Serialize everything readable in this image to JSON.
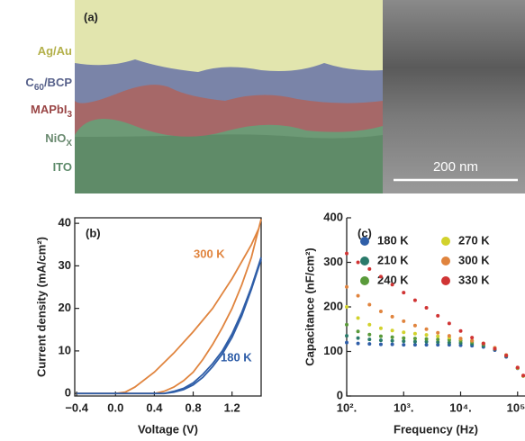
{
  "image_panel": {
    "title": "(a)",
    "layers": [
      {
        "main": "Ag/Au",
        "color": "#b3b04a"
      },
      {
        "main": "C",
        "sub": "60",
        "rest": "/BCP",
        "color": "#56608a"
      },
      {
        "main": "MAPbI",
        "sub": "3",
        "color": "#9a4646"
      },
      {
        "main": "NiO",
        "sub": "X",
        "color": "#6a8a70"
      },
      {
        "main": "ITO",
        "color": "#5d8a6a"
      }
    ],
    "scale_bar": "200 nm"
  },
  "chart_data": [
    {
      "type": "line",
      "title": "(b)",
      "x_label": "Voltage (V)",
      "y_label": "Current density (mA/cm²)",
      "xlim": [
        -0.42,
        1.5
      ],
      "ylim": [
        -0.6,
        41.3
      ],
      "xticks": [
        {
          "value": -0.4,
          "label": "−0.4"
        },
        {
          "value": 0,
          "label": "0.0"
        },
        0.4,
        0.8,
        1.2
      ],
      "yticks": [
        0,
        10,
        20,
        30,
        40
      ],
      "series": [
        {
          "name": "300 K",
          "color": "#e0843e",
          "x": [
            -0.4,
            0,
            0.1,
            0.2,
            0.4,
            0.6,
            0.8,
            1.0,
            1.2,
            1.4,
            1.48,
            null,
            -0.4,
            0.4,
            0.5,
            0.6,
            0.7,
            0.8,
            0.9,
            1.0,
            1.1,
            1.2,
            1.3,
            1.4,
            1.5
          ],
          "values": [
            0,
            0,
            0.3,
            1.5,
            5,
            9.5,
            14.5,
            20,
            27,
            35,
            39,
            null,
            0,
            0,
            0.5,
            1.5,
            3,
            5,
            8,
            11.5,
            15.5,
            20,
            25.5,
            32,
            41
          ]
        },
        {
          "name": "180 K",
          "color": "#2f5ea8",
          "x": [
            -0.4,
            0.5,
            0.6,
            0.7,
            0.8,
            0.9,
            1.0,
            1.1,
            1.2,
            1.3,
            1.4,
            1.5,
            null,
            -0.4,
            0.5,
            0.6,
            0.7,
            0.8,
            0.9,
            1.0,
            1.1,
            1.2,
            1.3,
            1.4,
            1.5
          ],
          "values": [
            0,
            0,
            0.5,
            1.2,
            2.5,
            4.5,
            7,
            10,
            14,
            19,
            25,
            32,
            null,
            0,
            0,
            0.3,
            0.9,
            2,
            3.8,
            6.3,
            9.3,
            13.2,
            18.2,
            24.5,
            31.5
          ]
        }
      ]
    },
    {
      "type": "scatter",
      "title": "(c)",
      "x_label": "Frequency (Hz)",
      "y_label": "Capacitance (nF/cm²)",
      "log_x": true,
      "xlim": [
        100,
        134896
      ],
      "ylim": [
        0,
        400
      ],
      "xticks": [
        {
          "value": 100,
          "label": "10²."
        },
        {
          "value": 1000,
          "label": "10³."
        },
        {
          "value": 10000,
          "label": "10⁴."
        },
        {
          "value": 100000,
          "label": "10⁵."
        }
      ],
      "yticks": [
        0,
        100,
        200,
        300,
        400
      ],
      "x": [
        100,
        158,
        251,
        398,
        631,
        1000,
        1585,
        2512,
        3981,
        6310,
        10000,
        15849,
        25119,
        39811,
        63096,
        100000,
        125893
      ],
      "series": [
        {
          "name": "180 K",
          "color": "#2f5ea8",
          "values": [
            120,
            118,
            117,
            116,
            116,
            115,
            115,
            115,
            115,
            115,
            114,
            113,
            110,
            103,
            88,
            62,
            45
          ]
        },
        {
          "name": "210 K",
          "color": "#2a7a6a",
          "values": [
            135,
            130,
            127,
            125,
            124,
            123,
            122,
            122,
            121,
            120,
            119,
            117,
            113,
            105,
            90,
            63,
            45
          ]
        },
        {
          "name": "240 K",
          "color": "#5a9a3a",
          "values": [
            160,
            145,
            138,
            134,
            132,
            130,
            129,
            128,
            127,
            126,
            124,
            121,
            116,
            107,
            91,
            63,
            45
          ]
        },
        {
          "name": "270 K",
          "color": "#d2d22c",
          "values": [
            200,
            175,
            160,
            152,
            147,
            143,
            140,
            137,
            134,
            131,
            128,
            124,
            118,
            108,
            92,
            63,
            45
          ]
        },
        {
          "name": "300 K",
          "color": "#e0843e",
          "values": [
            245,
            225,
            205,
            190,
            178,
            168,
            158,
            150,
            142,
            135,
            129,
            124,
            118,
            108,
            92,
            64,
            46
          ]
        },
        {
          "name": "330 K",
          "color": "#d03434",
          "values": [
            320,
            300,
            285,
            268,
            250,
            232,
            215,
            198,
            180,
            163,
            146,
            131,
            118,
            106,
            91,
            64,
            46
          ]
        }
      ]
    }
  ]
}
